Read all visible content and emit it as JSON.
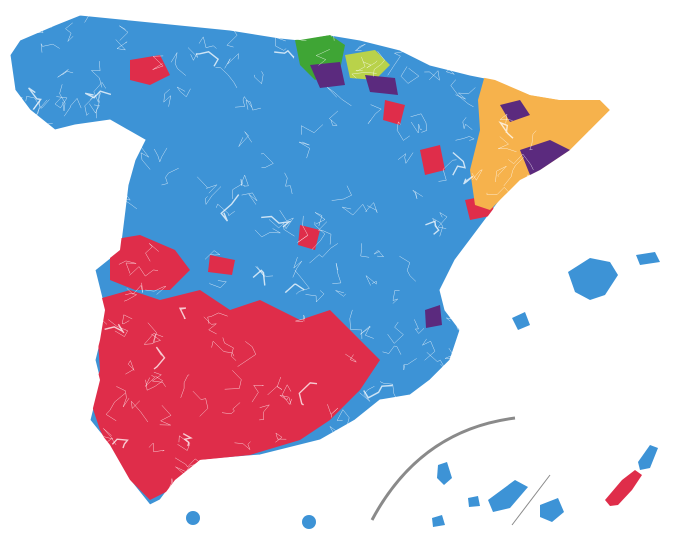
{
  "map": {
    "colors": {
      "blue": "#3d93d6",
      "red": "#df2d4a",
      "purple": "#5b2a7e",
      "green": "#3fa535",
      "lightgreen": "#b9d24a",
      "orange": "#f6b24c",
      "border": "#ffffff",
      "inset_line": "#8a8a8a"
    }
  }
}
